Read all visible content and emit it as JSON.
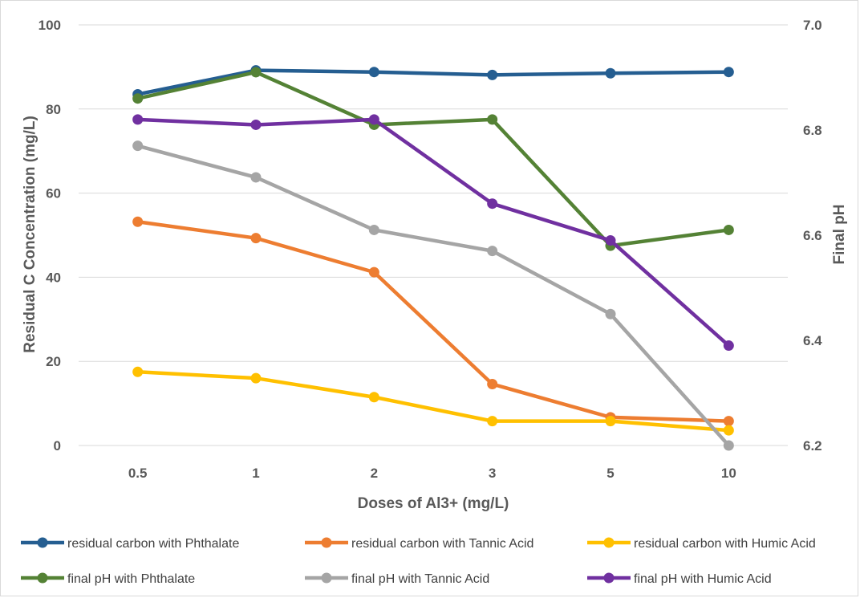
{
  "chart_data": {
    "type": "line",
    "categories": [
      "0.5",
      "1",
      "2",
      "3",
      "5",
      "10"
    ],
    "xlabel": "Doses of Al3+ (mg/L)",
    "ylabel": "Residual C Concentration (mg/L)",
    "y2label": "Final pH",
    "ylim": [
      0,
      100
    ],
    "y2lim": [
      6.2,
      7.0
    ],
    "yticks": [
      "0",
      "20",
      "40",
      "60",
      "80",
      "100"
    ],
    "y2ticks": [
      "6.2",
      "6.4",
      "6.6",
      "6.8",
      "7.0"
    ],
    "grid": true,
    "legend_position": "bottom",
    "series": [
      {
        "name": "residual carbon with Phthalate",
        "axis": "left",
        "color": "#255E91",
        "values": [
          83.5,
          89.2,
          88.8,
          88.1,
          88.5,
          88.8
        ]
      },
      {
        "name": "residual carbon with Tannic Acid",
        "axis": "left",
        "color": "#ED7D31",
        "values": [
          53.2,
          49.3,
          41.2,
          14.6,
          6.7,
          5.8
        ]
      },
      {
        "name": "residual carbon with Humic Acid",
        "axis": "left",
        "color": "#FFC000",
        "values": [
          17.5,
          16.0,
          11.5,
          5.8,
          5.8,
          3.6
        ]
      },
      {
        "name": "final pH with Phthalate",
        "axis": "right",
        "color": "#548235",
        "values": [
          6.86,
          6.91,
          6.81,
          6.82,
          6.58,
          6.61
        ]
      },
      {
        "name": "final pH with Tannic Acid",
        "axis": "right",
        "color": "#A5A5A5",
        "values": [
          6.77,
          6.71,
          6.61,
          6.57,
          6.45,
          6.2
        ]
      },
      {
        "name": "final pH with Humic Acid",
        "axis": "right",
        "color": "#7030A0",
        "values": [
          6.82,
          6.81,
          6.82,
          6.66,
          6.59,
          6.39
        ]
      }
    ]
  }
}
